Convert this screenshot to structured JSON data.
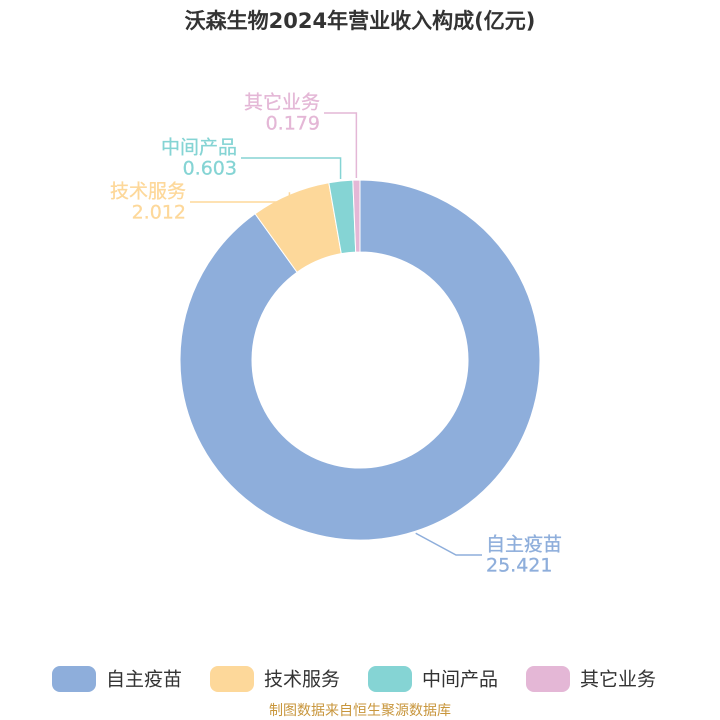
{
  "chart_data": {
    "type": "donut",
    "title": "沃森生物2024年营业收入构成(亿元)",
    "categories": [
      "自主疫苗",
      "技术服务",
      "中间产品",
      "其它业务"
    ],
    "values": [
      25.421,
      2.012,
      0.603,
      0.179
    ],
    "colors": [
      "#8eaedb",
      "#fdd89a",
      "#85d4d4",
      "#e4b7d6"
    ],
    "legend": "bottom",
    "source": "制图数据来自恒生聚源数据库"
  }
}
